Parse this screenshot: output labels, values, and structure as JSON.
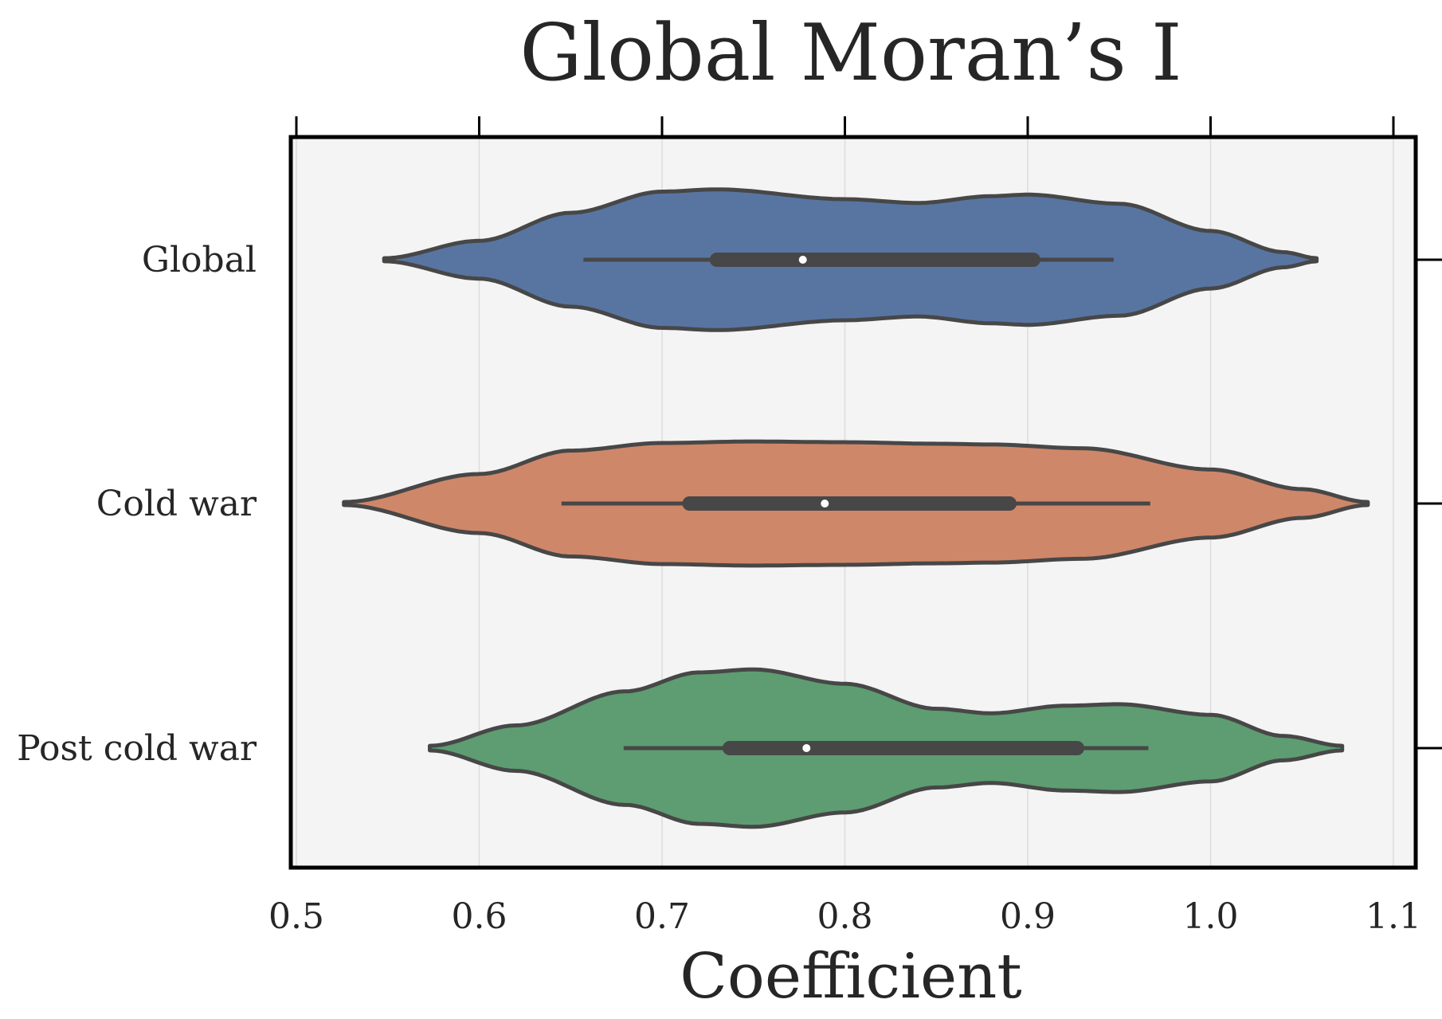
{
  "chart_data": {
    "type": "violin",
    "title": "Global Moran’s I",
    "xlabel": "Coefficient",
    "ylabel": "",
    "xlim": [
      0.5,
      1.11
    ],
    "xticks": [
      0.5,
      0.6,
      0.7,
      0.8,
      0.9,
      1.0,
      1.1
    ],
    "xtick_labels": [
      "0.5",
      "0.6",
      "0.7",
      "0.8",
      "0.9",
      "1.0",
      "1.1"
    ],
    "grid": "vertical",
    "background": "#f4f4f4",
    "categories": [
      "Global",
      "Cold war",
      "Post cold war"
    ],
    "series": [
      {
        "color": "#5875a2",
        "range": [
          0.548,
          1.058
        ],
        "whiskers": [
          0.657,
          0.947
        ],
        "q1": 0.73,
        "q3": 0.903,
        "median": 0.777,
        "density": [
          [
            0.548,
            0.02
          ],
          [
            0.6,
            0.25
          ],
          [
            0.65,
            0.62
          ],
          [
            0.7,
            0.9
          ],
          [
            0.73,
            0.93
          ],
          [
            0.8,
            0.8
          ],
          [
            0.84,
            0.75
          ],
          [
            0.88,
            0.84
          ],
          [
            0.9,
            0.86
          ],
          [
            0.95,
            0.74
          ],
          [
            1.0,
            0.38
          ],
          [
            1.04,
            0.1
          ],
          [
            1.058,
            0.02
          ]
        ]
      },
      {
        "color": "#cf8769",
        "range": [
          0.526,
          1.086
        ],
        "whiskers": [
          0.645,
          0.967
        ],
        "q1": 0.715,
        "q3": 0.89,
        "median": 0.789,
        "density": [
          [
            0.526,
            0.02
          ],
          [
            0.6,
            0.39
          ],
          [
            0.65,
            0.7
          ],
          [
            0.7,
            0.8
          ],
          [
            0.75,
            0.82
          ],
          [
            0.8,
            0.81
          ],
          [
            0.85,
            0.79
          ],
          [
            0.88,
            0.78
          ],
          [
            0.93,
            0.73
          ],
          [
            1.0,
            0.45
          ],
          [
            1.05,
            0.19
          ],
          [
            1.086,
            0.02
          ]
        ]
      },
      {
        "color": "#5d9d71",
        "range": [
          0.573,
          1.072
        ],
        "whiskers": [
          0.679,
          0.966
        ],
        "q1": 0.737,
        "q3": 0.927,
        "median": 0.779,
        "density": [
          [
            0.573,
            0.03
          ],
          [
            0.62,
            0.3
          ],
          [
            0.68,
            0.75
          ],
          [
            0.72,
            1.0
          ],
          [
            0.75,
            1.04
          ],
          [
            0.8,
            0.85
          ],
          [
            0.85,
            0.52
          ],
          [
            0.88,
            0.46
          ],
          [
            0.92,
            0.56
          ],
          [
            0.95,
            0.58
          ],
          [
            1.0,
            0.44
          ],
          [
            1.04,
            0.16
          ],
          [
            1.072,
            0.03
          ]
        ]
      }
    ]
  }
}
